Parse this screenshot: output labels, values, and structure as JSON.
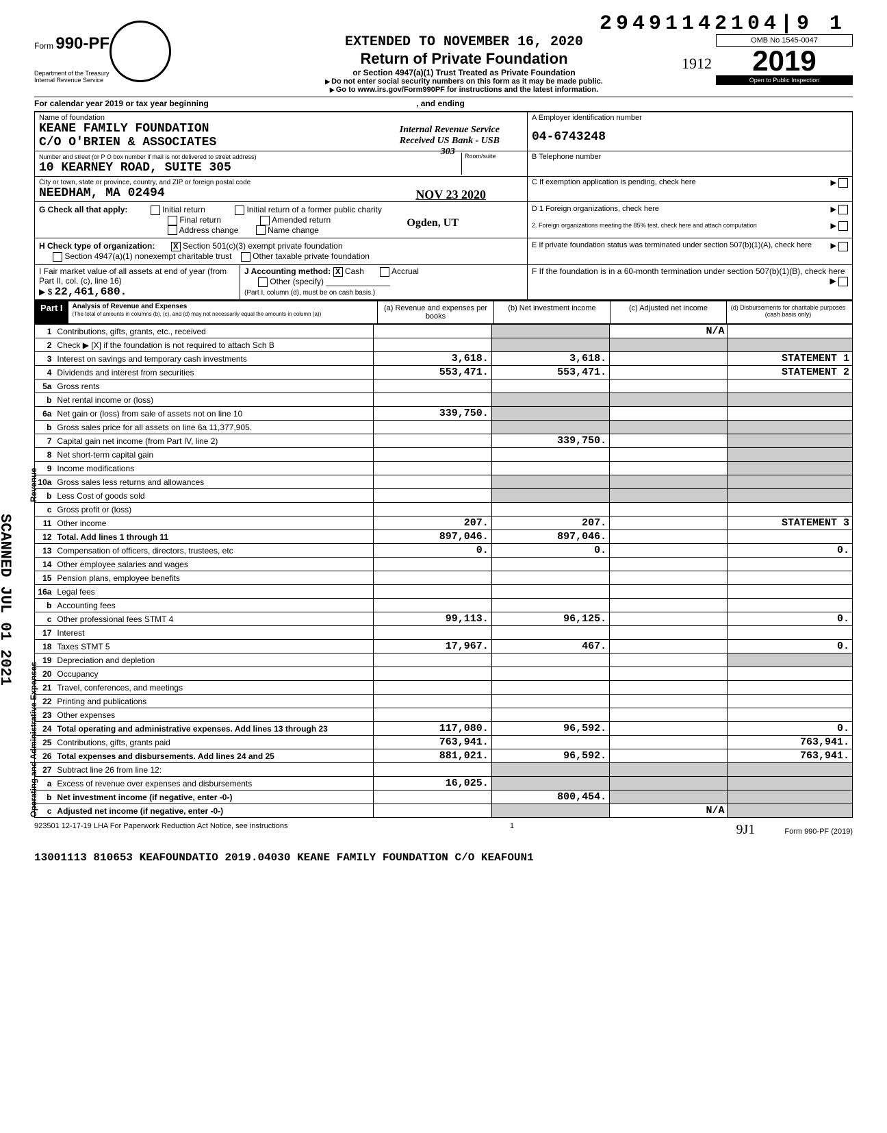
{
  "doc_id": "29491142104|9  1",
  "header": {
    "form_prefix": "Form",
    "form_number": "990-PF",
    "dept1": "Department of the Treasury",
    "dept2": "Internal Revenue Service",
    "extended": "EXTENDED TO NOVEMBER 16, 2020",
    "title": "Return of Private Foundation",
    "sub": "or Section 4947(a)(1) Trust Treated as Private Foundation",
    "warn": "Do not enter social security numbers on this form as it may be made public.",
    "goto": "Go to www.irs.gov/Form990PF for instructions and the latest information.",
    "omb": "OMB No 1545-0047",
    "year": "2019",
    "open": "Open to Public Inspection",
    "handwrite": "1912",
    "cal": "For calendar year 2019 or tax year beginning",
    "ending": ", and ending"
  },
  "foundation": {
    "name_lbl": "Name of foundation",
    "name": "KEANE FAMILY FOUNDATION",
    "co": "C/O O'BRIEN & ASSOCIATES",
    "addr_lbl": "Number and street (or P O  box number if mail is not delivered to street address)",
    "addr": "10 KEARNEY ROAD, SUITE 305",
    "room_lbl": "Room/suite",
    "city_lbl": "City or town, state or province, country, and ZIP or foreign postal code",
    "city": "NEEDHAM, MA   02494",
    "ein_lbl": "A  Employer identification number",
    "ein": "04-6743248",
    "tel_lbl": "B  Telephone number",
    "c_lbl": "C  If exemption application is pending, check here",
    "stamp1": "Internal Revenue Service",
    "stamp2": "Received US Bank - USB",
    "stamp3": "303",
    "stamp4": "NOV 23 2020",
    "stamp5": "Ogden, UT"
  },
  "boxG": {
    "lbl": "G   Check all that apply:",
    "o1": "Initial return",
    "o2": "Initial return of a former public charity",
    "o3": "Final return",
    "o4": "Amended return",
    "o5": "Address change",
    "o6": "Name change"
  },
  "boxD": {
    "d1": "D  1  Foreign organizations, check here",
    "d2": "2.  Foreign organizations meeting the 85% test, check here and attach computation"
  },
  "boxH": {
    "lbl": "H   Check type of organization:",
    "o1": "Section 501(c)(3) exempt private foundation",
    "o2": "Section 4947(a)(1) nonexempt charitable trust",
    "o3": "Other taxable private foundation"
  },
  "boxE": {
    "e": "E   If private foundation status was terminated under section 507(b)(1)(A), check here"
  },
  "boxI": {
    "lbl": "I   Fair market value of all assets at end of year (from Part II, col. (c), line 16)",
    "val": "22,461,680.",
    "j_lbl": "J   Accounting method:",
    "cash": "Cash",
    "accrual": "Accrual",
    "other": "Other (specify)",
    "note": "(Part I, column (d), must be on cash basis.)"
  },
  "boxF": {
    "f": "F   If the foundation is in a 60-month termination under section 507(b)(1)(B), check here"
  },
  "part1": {
    "label": "Part I",
    "desc1": "Analysis of Revenue and Expenses",
    "desc2": "(The total of amounts in columns (b), (c), and (d) may not necessarily equal the amounts in column (a))",
    "col_a": "(a) Revenue and expenses per books",
    "col_b": "(b) Net investment income",
    "col_c": "(c) Adjusted net income",
    "col_d": "(d) Disbursements for charitable purposes (cash basis only)"
  },
  "sidelabels": {
    "rev": "Revenue",
    "ops": "Operating and Administrative Expenses",
    "scanned": "SCANNED JUL 01 2021"
  },
  "rows": {
    "r1": {
      "n": "1",
      "lbl": "Contributions, gifts, grants, etc., received",
      "c": "N/A"
    },
    "r2": {
      "n": "2",
      "lbl": "Check ▶ [X] if the foundation is not required to attach Sch B"
    },
    "r3": {
      "n": "3",
      "lbl": "Interest on savings and temporary cash investments",
      "a": "3,618.",
      "b": "3,618.",
      "d": "STATEMENT 1"
    },
    "r4": {
      "n": "4",
      "lbl": "Dividends and interest from securities",
      "a": "553,471.",
      "b": "553,471.",
      "d": "STATEMENT 2"
    },
    "r5a": {
      "n": "5a",
      "lbl": "Gross rents"
    },
    "r5b": {
      "n": "b",
      "lbl": "Net rental income or (loss)"
    },
    "r6a": {
      "n": "6a",
      "lbl": "Net gain or (loss) from sale of assets not on line 10",
      "a": "339,750."
    },
    "r6b": {
      "n": "b",
      "lbl": "Gross sales price for all assets on line 6a   11,377,905."
    },
    "r7": {
      "n": "7",
      "lbl": "Capital gain net income (from Part IV, line 2)",
      "b": "339,750."
    },
    "r8": {
      "n": "8",
      "lbl": "Net short-term capital gain"
    },
    "r9": {
      "n": "9",
      "lbl": "Income modifications"
    },
    "r10a": {
      "n": "10a",
      "lbl": "Gross sales less returns and allowances"
    },
    "r10b": {
      "n": "b",
      "lbl": "Less  Cost of goods sold"
    },
    "r10c": {
      "n": "c",
      "lbl": "Gross profit or (loss)"
    },
    "r11": {
      "n": "11",
      "lbl": "Other income",
      "a": "207.",
      "b": "207.",
      "d": "STATEMENT 3"
    },
    "r12": {
      "n": "12",
      "lbl": "Total. Add lines 1 through 11",
      "a": "897,046.",
      "b": "897,046."
    },
    "r13": {
      "n": "13",
      "lbl": "Compensation of officers, directors, trustees, etc",
      "a": "0.",
      "b": "0.",
      "d": "0."
    },
    "r14": {
      "n": "14",
      "lbl": "Other employee salaries and wages"
    },
    "r15": {
      "n": "15",
      "lbl": "Pension plans, employee benefits"
    },
    "r16a": {
      "n": "16a",
      "lbl": "Legal fees"
    },
    "r16b": {
      "n": "b",
      "lbl": "Accounting fees"
    },
    "r16c": {
      "n": "c",
      "lbl": "Other professional fees          STMT 4",
      "a": "99,113.",
      "b": "96,125.",
      "d": "0."
    },
    "r17": {
      "n": "17",
      "lbl": "Interest"
    },
    "r18": {
      "n": "18",
      "lbl": "Taxes                             STMT 5",
      "a": "17,967.",
      "b": "467.",
      "d": "0."
    },
    "r19": {
      "n": "19",
      "lbl": "Depreciation and depletion"
    },
    "r20": {
      "n": "20",
      "lbl": "Occupancy"
    },
    "r21": {
      "n": "21",
      "lbl": "Travel, conferences, and meetings"
    },
    "r22": {
      "n": "22",
      "lbl": "Printing and publications"
    },
    "r23": {
      "n": "23",
      "lbl": "Other expenses"
    },
    "r24": {
      "n": "24",
      "lbl": "Total operating and administrative expenses. Add lines 13 through 23",
      "a": "117,080.",
      "b": "96,592.",
      "d": "0."
    },
    "r25": {
      "n": "25",
      "lbl": "Contributions, gifts, grants paid",
      "a": "763,941.",
      "d": "763,941."
    },
    "r26": {
      "n": "26",
      "lbl": "Total expenses and disbursements. Add lines 24 and 25",
      "a": "881,021.",
      "b": "96,592.",
      "d": "763,941."
    },
    "r27": {
      "n": "27",
      "lbl": "Subtract line 26 from line 12:"
    },
    "r27a": {
      "n": "a",
      "lbl": "Excess of revenue over expenses and disbursements",
      "a": "16,025."
    },
    "r27b": {
      "n": "b",
      "lbl": "Net investment income (if negative, enter -0-)",
      "b": "800,454."
    },
    "r27c": {
      "n": "c",
      "lbl": "Adjusted net income (if negative, enter -0-)",
      "c": "N/A"
    }
  },
  "footer": {
    "left": "923501  12-17-19   LHA  For Paperwork Reduction Act Notice, see instructions",
    "page": "1",
    "right": "Form 990-PF (2019)",
    "sig": "9J1",
    "bottom": "13001113 810653 KEAFOUNDATIO   2019.04030 KEANE FAMILY FOUNDATION C/O KEAFOUN1"
  },
  "colwidths": {
    "a": 170,
    "b": 170,
    "c": 170,
    "d": 180
  }
}
